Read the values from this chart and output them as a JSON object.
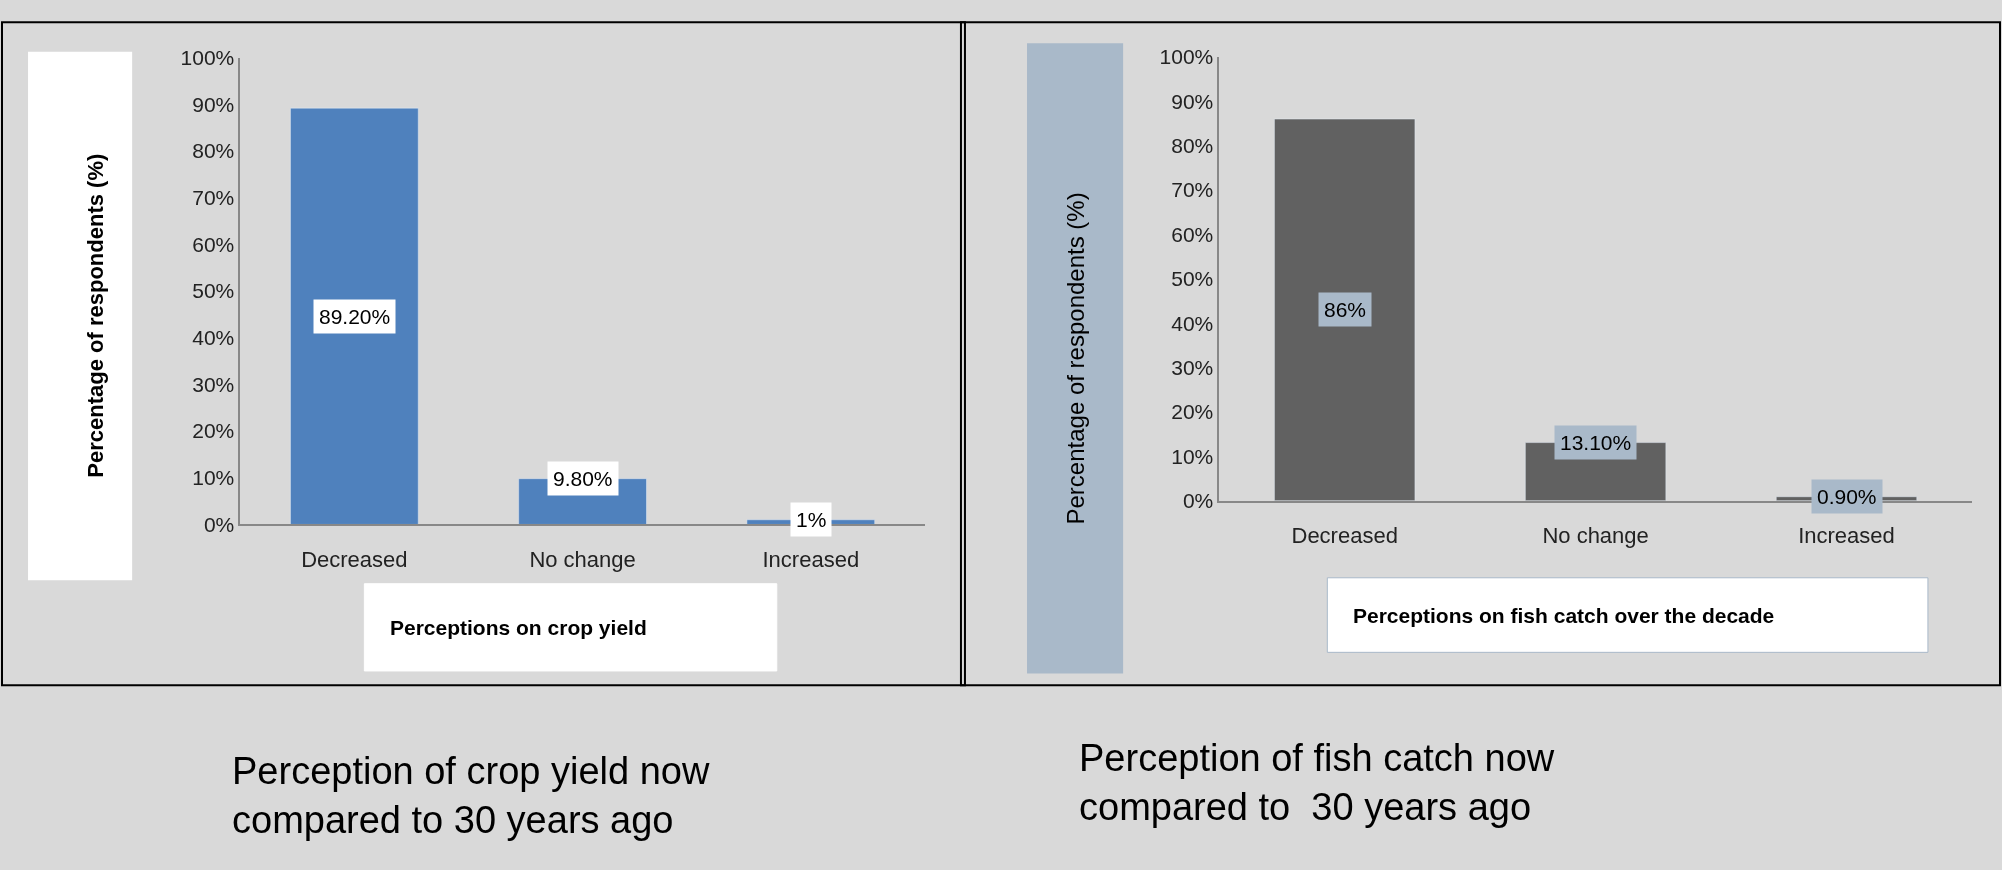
{
  "chart_data": [
    {
      "type": "bar",
      "title": "Perception of crop yield now compared to 30 years ago",
      "xlabel": "Perceptions on crop yield",
      "ylabel": "Percentage of respondents (%)",
      "categories": [
        "Decreased",
        "No change",
        "Increased"
      ],
      "values": [
        89.2,
        9.8,
        1
      ],
      "color": "#4f81bd",
      "value_labels": [
        "89.20%",
        "9.80%",
        "1%"
      ],
      "ylim": [
        0,
        100
      ],
      "yticks": [
        {
          "value": 0,
          "label": "0%"
        },
        {
          "value": 10,
          "label": "10%"
        },
        {
          "value": 20,
          "label": "20%"
        },
        {
          "value": 30,
          "label": "30%"
        },
        {
          "value": 40,
          "label": "40%"
        },
        {
          "value": 50,
          "label": "50%"
        },
        {
          "value": 60,
          "label": "60%"
        },
        {
          "value": 70,
          "label": "70%"
        },
        {
          "value": 80,
          "label": "80%"
        },
        {
          "value": 90,
          "label": "90%"
        },
        {
          "value": 100,
          "label": "100%"
        }
      ]
    },
    {
      "type": "bar",
      "title": "Perception of fish catch now compared to  30 years ago",
      "xlabel": "Perceptions on fish catch over the decade",
      "ylabel": "Percentage of respondents (%)",
      "categories": [
        "Decreased",
        "No change",
        "Increased"
      ],
      "values": [
        86,
        13.1,
        0.9
      ],
      "color": "#616161",
      "value_labels": [
        "86%",
        "13.10%",
        "0.90%"
      ],
      "ylim": [
        0,
        100
      ],
      "yticks": [
        {
          "value": 0,
          "label": "0%"
        },
        {
          "value": 10,
          "label": "10%"
        },
        {
          "value": 20,
          "label": "20%"
        },
        {
          "value": 30,
          "label": "30%"
        },
        {
          "value": 40,
          "label": "40%"
        },
        {
          "value": 50,
          "label": "50%"
        },
        {
          "value": 60,
          "label": "60%"
        },
        {
          "value": 70,
          "label": "70%"
        },
        {
          "value": 80,
          "label": "80%"
        },
        {
          "value": 90,
          "label": "90%"
        },
        {
          "value": 100,
          "label": "100%"
        }
      ]
    }
  ]
}
